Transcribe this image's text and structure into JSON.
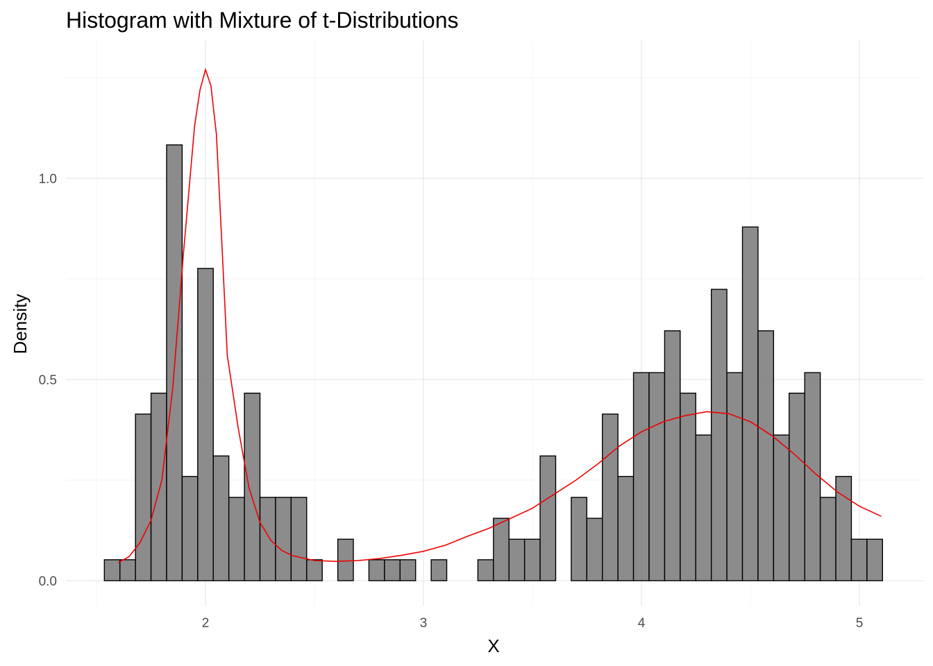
{
  "chart_data": {
    "type": "bar",
    "title": "Histogram with Mixture of t-Distributions",
    "xlabel": "X",
    "ylabel": "Density",
    "xlim": [
      1.5,
      5.15
    ],
    "ylim": [
      -0.06,
      1.34
    ],
    "grid": true,
    "x_ticks": [
      {
        "value": 2,
        "label": "2"
      },
      {
        "value": 3,
        "label": "3"
      },
      {
        "value": 4,
        "label": "4"
      },
      {
        "value": 5,
        "label": "5"
      }
    ],
    "x_minor_ticks": [
      1.5,
      2.5,
      3.5,
      4.5
    ],
    "y_ticks": [
      {
        "value": 0,
        "label": "0.0"
      },
      {
        "value": 0.5,
        "label": "0.5"
      },
      {
        "value": 1.0,
        "label": "1.0"
      }
    ],
    "y_minor_ticks": [
      0.25,
      0.75,
      1.25
    ],
    "bin_width": 0.0714,
    "bins_start": 1.536,
    "values": [
      0.052,
      0.052,
      0.414,
      0.466,
      1.083,
      0.259,
      0.776,
      0.31,
      0.207,
      0.466,
      0.207,
      0.207,
      0.207,
      0.052,
      0,
      0.103,
      0,
      0.052,
      0.052,
      0.052,
      0,
      0.052,
      0,
      0,
      0.052,
      0.155,
      0.103,
      0.103,
      0.31,
      0,
      0.207,
      0.155,
      0.414,
      0.259,
      0.517,
      0.517,
      0.621,
      0.466,
      0.362,
      0.724,
      0.517,
      0.879,
      0.621,
      0.362,
      0.466,
      0.517,
      0.207,
      0.259,
      0.103,
      0.103
    ],
    "series": [
      {
        "type": "line",
        "color": "#ee0000",
        "x": [
          1.6,
          1.65,
          1.7,
          1.75,
          1.8,
          1.85,
          1.9,
          1.95,
          1.975,
          2.0,
          2.025,
          2.05,
          2.075,
          2.1,
          2.15,
          2.2,
          2.25,
          2.3,
          2.35,
          2.4,
          2.5,
          2.6,
          2.7,
          2.8,
          2.9,
          3.0,
          3.1,
          3.2,
          3.3,
          3.4,
          3.5,
          3.6,
          3.7,
          3.8,
          3.9,
          4.0,
          4.1,
          4.2,
          4.3,
          4.4,
          4.5,
          4.6,
          4.7,
          4.8,
          4.9,
          5.0,
          5.1
        ],
        "y": [
          0.045,
          0.06,
          0.095,
          0.15,
          0.25,
          0.48,
          0.82,
          1.13,
          1.22,
          1.27,
          1.23,
          1.11,
          0.84,
          0.56,
          0.38,
          0.23,
          0.145,
          0.1,
          0.075,
          0.062,
          0.05,
          0.048,
          0.05,
          0.055,
          0.063,
          0.073,
          0.088,
          0.11,
          0.13,
          0.155,
          0.18,
          0.215,
          0.25,
          0.29,
          0.335,
          0.37,
          0.395,
          0.41,
          0.42,
          0.415,
          0.395,
          0.36,
          0.315,
          0.265,
          0.22,
          0.185,
          0.16
        ]
      }
    ]
  }
}
